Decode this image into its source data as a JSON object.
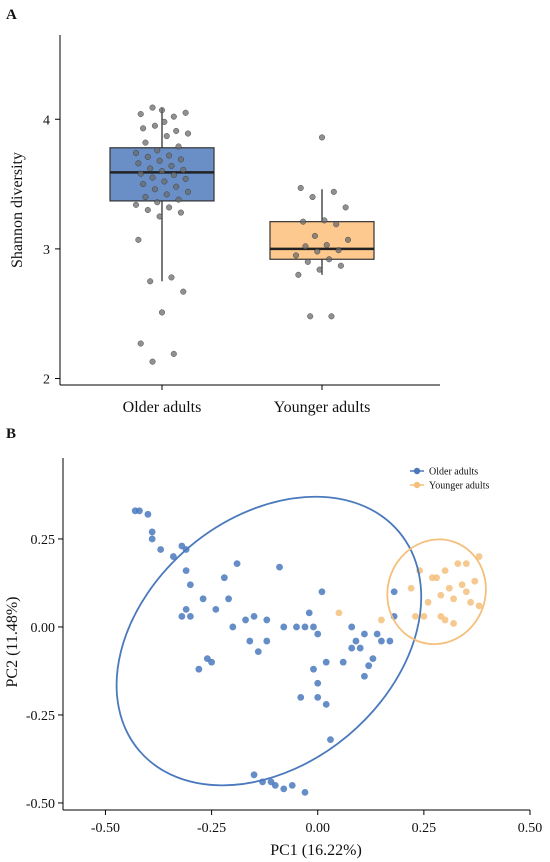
{
  "chart_data": [
    {
      "type": "box",
      "panel_label": "A",
      "xlabel": "",
      "ylabel": "Shannon diversity",
      "ylim": [
        1.95,
        4.65
      ],
      "yticks": [
        2,
        3,
        4
      ],
      "categories": [
        "Older adults",
        "Younger adults"
      ],
      "colors": {
        "Older adults": "#6a8fc7",
        "Younger adults": "#fdc98f"
      },
      "boxes": [
        {
          "category": "Older adults",
          "whisker_low": 2.75,
          "q1": 3.37,
          "median": 3.59,
          "q3": 3.78,
          "whisker_high": 4.09
        },
        {
          "category": "Younger adults",
          "whisker_low": 2.8,
          "q1": 2.92,
          "median": 3.0,
          "q3": 3.21,
          "whisker_high": 3.46
        }
      ],
      "points": {
        "Older adults": [
          4.07,
          4.04,
          4.02,
          4.09,
          4.05,
          3.98,
          3.93,
          3.91,
          3.95,
          3.89,
          3.87,
          3.82,
          3.79,
          3.76,
          3.74,
          3.72,
          3.71,
          3.69,
          3.68,
          3.66,
          3.64,
          3.62,
          3.61,
          3.6,
          3.58,
          3.57,
          3.55,
          3.54,
          3.52,
          3.5,
          3.48,
          3.46,
          3.44,
          3.42,
          3.4,
          3.38,
          3.36,
          3.34,
          3.32,
          3.3,
          3.28,
          3.25,
          3.07,
          2.78,
          2.75,
          2.67,
          2.51,
          2.27,
          2.19,
          2.13
        ],
        "Younger adults": [
          3.86,
          3.47,
          3.44,
          3.4,
          3.32,
          3.22,
          3.21,
          3.19,
          3.1,
          3.07,
          3.03,
          3.02,
          2.99,
          2.98,
          2.95,
          2.92,
          2.9,
          2.87,
          2.84,
          2.8,
          2.48,
          2.48
        ]
      }
    },
    {
      "type": "scatter",
      "panel_label": "B",
      "xlabel": "PC1 (16.22%)",
      "ylabel": "PC2 (11.48%)",
      "xlim": [
        -0.6,
        0.5
      ],
      "ylim": [
        -0.52,
        0.48
      ],
      "xticks": [
        -0.5,
        -0.25,
        0.0,
        0.25,
        0.5
      ],
      "xtick_labels": [
        "-0.50",
        "-0.25",
        "0.00",
        "0.25",
        "0.50"
      ],
      "yticks": [
        -0.5,
        -0.25,
        0.0,
        0.25
      ],
      "ytick_labels": [
        "-0.50",
        "-0.25",
        "0.00",
        "0.25"
      ],
      "legend_position": "top-right",
      "series": [
        {
          "name": "Older adults",
          "color": "#4a79bd",
          "ellipse": {
            "cx": -0.115,
            "cy": -0.04,
            "rx": 0.4,
            "ry": 0.35,
            "angle_deg": -40
          },
          "points": [
            [
              -0.43,
              0.33
            ],
            [
              -0.42,
              0.33
            ],
            [
              -0.4,
              0.32
            ],
            [
              -0.39,
              0.27
            ],
            [
              -0.39,
              0.25
            ],
            [
              -0.37,
              0.22
            ],
            [
              -0.34,
              0.2
            ],
            [
              -0.32,
              0.23
            ],
            [
              -0.31,
              0.22
            ],
            [
              -0.31,
              0.16
            ],
            [
              -0.3,
              0.12
            ],
            [
              -0.27,
              0.08
            ],
            [
              -0.26,
              -0.09
            ],
            [
              -0.25,
              -0.1
            ],
            [
              -0.24,
              0.05
            ],
            [
              -0.22,
              0.14
            ],
            [
              -0.21,
              0.08
            ],
            [
              -0.19,
              0.18
            ],
            [
              -0.2,
              0.0
            ],
            [
              -0.17,
              0.02
            ],
            [
              -0.16,
              -0.04
            ],
            [
              -0.14,
              -0.07
            ],
            [
              -0.12,
              -0.04
            ],
            [
              -0.12,
              0.02
            ],
            [
              -0.09,
              0.17
            ],
            [
              -0.08,
              0.0
            ],
            [
              -0.03,
              0.0
            ],
            [
              -0.01,
              0.0
            ],
            [
              0.0,
              -0.02
            ],
            [
              -0.02,
              0.04
            ],
            [
              -0.05,
              0.0
            ],
            [
              0.08,
              0.0
            ],
            [
              -0.06,
              -0.45
            ],
            [
              -0.1,
              -0.45
            ],
            [
              0.03,
              -0.32
            ],
            [
              -0.03,
              -0.47
            ],
            [
              -0.15,
              -0.42
            ],
            [
              -0.13,
              -0.44
            ],
            [
              -0.11,
              -0.44
            ],
            [
              -0.08,
              -0.46
            ],
            [
              0.0,
              -0.16
            ],
            [
              0.02,
              -0.22
            ],
            [
              0.0,
              -0.2
            ],
            [
              -0.04,
              -0.2
            ],
            [
              0.02,
              -0.1
            ],
            [
              -0.01,
              -0.12
            ],
            [
              0.06,
              -0.1
            ],
            [
              0.08,
              -0.06
            ],
            [
              0.11,
              -0.14
            ],
            [
              0.12,
              -0.11
            ],
            [
              0.13,
              -0.09
            ],
            [
              0.11,
              -0.02
            ],
            [
              0.09,
              -0.04
            ],
            [
              0.1,
              -0.06
            ],
            [
              0.14,
              -0.02
            ],
            [
              0.15,
              -0.04
            ],
            [
              0.17,
              -0.04
            ],
            [
              0.18,
              0.03
            ],
            [
              0.18,
              0.1
            ],
            [
              0.01,
              0.1
            ],
            [
              -0.3,
              0.03
            ],
            [
              -0.31,
              0.05
            ],
            [
              -0.32,
              0.03
            ],
            [
              -0.15,
              0.03
            ],
            [
              -0.28,
              -0.12
            ]
          ]
        },
        {
          "name": "Younger adults",
          "color": "#f5bf7c",
          "ellipse": {
            "cx": 0.28,
            "cy": 0.1,
            "rx": 0.115,
            "ry": 0.15,
            "angle_deg": 20
          },
          "points": [
            [
              0.05,
              0.04
            ],
            [
              0.15,
              0.02
            ],
            [
              0.23,
              0.03
            ],
            [
              0.25,
              0.03
            ],
            [
              0.26,
              0.07
            ],
            [
              0.28,
              0.14
            ],
            [
              0.29,
              0.03
            ],
            [
              0.29,
              0.09
            ],
            [
              0.3,
              0.16
            ],
            [
              0.3,
              0.02
            ],
            [
              0.31,
              0.11
            ],
            [
              0.32,
              0.01
            ],
            [
              0.33,
              0.18
            ],
            [
              0.34,
              0.12
            ],
            [
              0.35,
              0.18
            ],
            [
              0.35,
              0.1
            ],
            [
              0.36,
              0.07
            ],
            [
              0.37,
              0.13
            ],
            [
              0.38,
              0.2
            ],
            [
              0.38,
              0.06
            ],
            [
              0.32,
              0.08
            ],
            [
              0.22,
              0.11
            ],
            [
              0.24,
              0.16
            ],
            [
              0.27,
              0.14
            ]
          ]
        }
      ]
    }
  ]
}
